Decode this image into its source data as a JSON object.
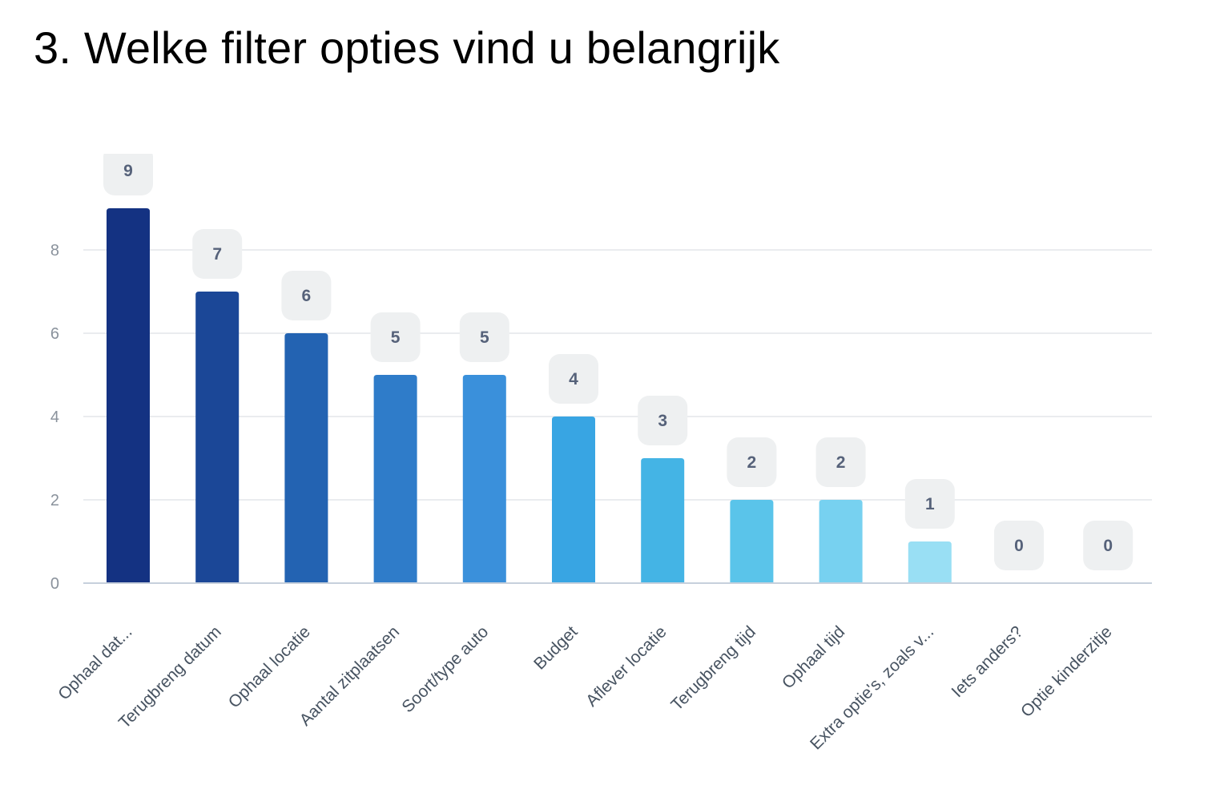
{
  "chart_data": {
    "type": "bar",
    "title": "3. Welke filter opties vind u belangrijk",
    "categories": [
      "Ophaal dat...",
      "Terugbreng datum",
      "Ophaal locatie",
      "Aantal zitplaatsen",
      "Soort/type auto",
      "Budget",
      "Aflever locatie",
      "Terugbreng tijd",
      "Ophaal tijd",
      "Extra optie's, zoals v...",
      "Iets anders?",
      "Optie kinderzitje"
    ],
    "values": [
      9,
      7,
      6,
      5,
      5,
      4,
      3,
      2,
      2,
      1,
      0,
      0
    ],
    "xlabel": "",
    "ylabel": "",
    "ylim": [
      0,
      9
    ],
    "yticks": [
      0,
      2,
      4,
      6,
      8
    ],
    "grid": true,
    "data_labels": true,
    "legend": "none",
    "colors": [
      "#143282",
      "#1b4797",
      "#2363b2",
      "#2f7cc9",
      "#3a90db",
      "#38a5e3",
      "#44b4e5",
      "#5ac4ea",
      "#77d1f0",
      "#99dff4",
      "#b8e9f8",
      "#cfeffa"
    ],
    "label_box_color": "#eef0f1",
    "gridline_color": "#e3e6ea",
    "axis_color": "#c7d0dc"
  }
}
